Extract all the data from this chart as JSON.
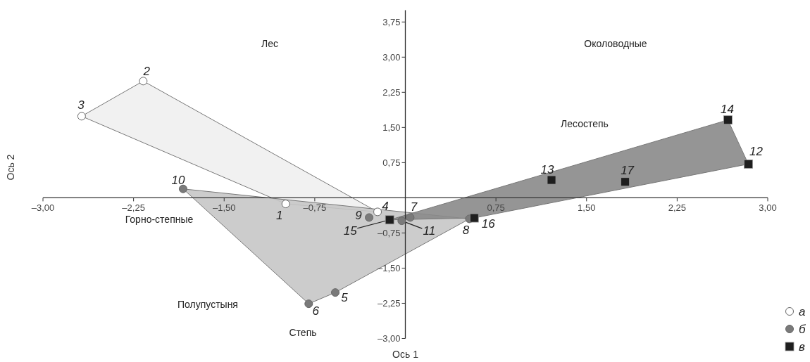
{
  "chart_data": {
    "type": "scatter",
    "xlabel": "Ось 1",
    "ylabel": "Ось 2",
    "xlim": [
      -3,
      3
    ],
    "ylim": [
      -3,
      4
    ],
    "xticks": [
      {
        "value": -3,
        "label": "–3,00"
      },
      {
        "value": -2.25,
        "label": "–2,25"
      },
      {
        "value": -1.5,
        "label": "–1,50"
      },
      {
        "value": -0.75,
        "label": "–0,75"
      },
      {
        "value": 0.75,
        "label": "0,75"
      },
      {
        "value": 1.5,
        "label": "1,50"
      },
      {
        "value": 2.25,
        "label": "2,25"
      },
      {
        "value": 3,
        "label": "3,00"
      }
    ],
    "yticks": [
      {
        "value": 3.75,
        "label": "3,75"
      },
      {
        "value": 3,
        "label": "3,00"
      },
      {
        "value": 2.25,
        "label": "2,25"
      },
      {
        "value": 1.5,
        "label": "1,50"
      },
      {
        "value": 0.75,
        "label": "0,75"
      },
      {
        "value": -0.75,
        "label": "–0,75"
      },
      {
        "value": -1.5,
        "label": "–1,50"
      },
      {
        "value": -2.25,
        "label": "–2,25"
      },
      {
        "value": -3,
        "label": "–3,00"
      }
    ],
    "grid": false,
    "legend": "bottom right",
    "series": [
      {
        "name": "а",
        "color": "#ffffff",
        "marker": "circle",
        "x": [
          -0.99,
          -2.17,
          -2.68,
          -0.23
        ],
        "values": [
          -0.13,
          2.49,
          1.74,
          -0.3
        ]
      },
      {
        "name": "б",
        "color": "#7a7a7a",
        "marker": "circle",
        "x": [
          -0.58,
          -0.8,
          0.04,
          0.53,
          -0.3,
          -1.84,
          -0.03
        ],
        "values": [
          -2.02,
          -2.26,
          -0.42,
          -0.45,
          -0.42,
          0.19,
          -0.49
        ]
      },
      {
        "name": "в",
        "color": "#1e1e1e",
        "marker": "square",
        "x": [
          2.84,
          1.21,
          2.67,
          -0.13,
          0.57,
          1.82
        ],
        "values": [
          0.72,
          0.38,
          1.66,
          -0.47,
          -0.43,
          0.34
        ]
      }
    ],
    "annotations": [
      {
        "text": "1",
        "x": -0.99,
        "y": -0.13
      },
      {
        "text": "2",
        "x": -2.17,
        "y": 2.49
      },
      {
        "text": "3",
        "x": -2.68,
        "y": 1.74
      },
      {
        "text": "4",
        "x": -0.23,
        "y": -0.3
      },
      {
        "text": "5",
        "x": -0.58,
        "y": -2.02
      },
      {
        "text": "6",
        "x": -0.8,
        "y": -2.26
      },
      {
        "text": "7",
        "x": 0.04,
        "y": -0.42
      },
      {
        "text": "8",
        "x": 0.53,
        "y": -0.45
      },
      {
        "text": "9",
        "x": -0.3,
        "y": -0.42
      },
      {
        "text": "10",
        "x": -1.84,
        "y": 0.19
      },
      {
        "text": "11",
        "x": -0.03,
        "y": -0.49
      },
      {
        "text": "12",
        "x": 2.84,
        "y": 0.72
      },
      {
        "text": "13",
        "x": 1.21,
        "y": 0.38
      },
      {
        "text": "14",
        "x": 2.67,
        "y": 1.66
      },
      {
        "text": "15",
        "x": -0.13,
        "y": -0.47
      },
      {
        "text": "16",
        "x": 0.57,
        "y": -0.43
      },
      {
        "text": "17",
        "x": 1.82,
        "y": 0.34
      },
      "Лес",
      "Околоводные",
      "Лесостепь",
      "Горно-степные",
      "Полупустыня",
      "Степь"
    ]
  }
}
